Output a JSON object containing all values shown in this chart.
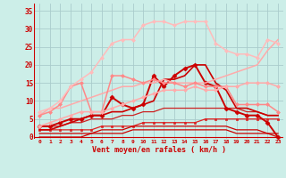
{
  "xlabel": "Vent moyen/en rafales ( km/h )",
  "background_color": "#cceee8",
  "grid_color": "#aacccc",
  "x_values": [
    0,
    1,
    2,
    3,
    4,
    5,
    6,
    7,
    8,
    9,
    10,
    11,
    12,
    13,
    14,
    15,
    16,
    17,
    18,
    19,
    20,
    21,
    22,
    23
  ],
  "ylim": [
    -0.5,
    37
  ],
  "yticks": [
    0,
    5,
    10,
    15,
    20,
    25,
    30,
    35
  ],
  "lines": [
    {
      "y": [
        2,
        2,
        2,
        2,
        2,
        2,
        3,
        3,
        3,
        3,
        4,
        4,
        4,
        4,
        4,
        4,
        5,
        5,
        5,
        5,
        5,
        5,
        5,
        5
      ],
      "color": "#dd2222",
      "lw": 0.9,
      "marker": "s",
      "ms": 1.5
    },
    {
      "y": [
        1,
        1,
        1,
        1,
        1,
        1,
        2,
        2,
        2,
        3,
        3,
        3,
        3,
        3,
        3,
        3,
        3,
        3,
        3,
        2,
        2,
        2,
        1,
        1
      ],
      "color": "#cc0000",
      "lw": 0.9,
      "marker": null
    },
    {
      "y": [
        0,
        0,
        0,
        0,
        0,
        1,
        1,
        1,
        1,
        2,
        2,
        2,
        2,
        2,
        2,
        2,
        2,
        2,
        2,
        1,
        1,
        1,
        1,
        0
      ],
      "color": "#cc0000",
      "lw": 0.9,
      "marker": null
    },
    {
      "y": [
        3,
        3,
        3,
        4,
        4,
        5,
        5,
        5,
        6,
        6,
        7,
        7,
        8,
        8,
        8,
        8,
        8,
        8,
        8,
        8,
        7,
        7,
        6,
        6
      ],
      "color": "#cc2222",
      "lw": 0.9,
      "marker": null
    },
    {
      "y": [
        2,
        2,
        3,
        4,
        5,
        6,
        6,
        7,
        7,
        8,
        9,
        10,
        16,
        16,
        17,
        20,
        20,
        15,
        13,
        8,
        8,
        7,
        6,
        6
      ],
      "color": "#cc0000",
      "lw": 1.2,
      "marker": null
    },
    {
      "y": [
        3,
        3,
        4,
        5,
        5,
        6,
        6,
        11,
        9,
        8,
        9,
        17,
        14,
        17,
        19,
        20,
        15,
        14,
        8,
        7,
        6,
        6,
        4,
        0
      ],
      "color": "#cc0000",
      "lw": 1.4,
      "marker": "D",
      "ms": 2.5
    },
    {
      "y": [
        6,
        8,
        8,
        9,
        10,
        11,
        12,
        13,
        14,
        14,
        15,
        15,
        16,
        15,
        15,
        15,
        15,
        16,
        17,
        18,
        19,
        20,
        24,
        27
      ],
      "color": "#ffaaaa",
      "lw": 1.1,
      "marker": null
    },
    {
      "y": [
        6,
        7,
        9,
        14,
        15,
        7,
        7,
        17,
        17,
        16,
        15,
        16,
        15,
        15,
        14,
        15,
        14,
        14,
        14,
        9,
        9,
        9,
        9,
        7
      ],
      "color": "#ff8888",
      "lw": 1.1,
      "marker": "D",
      "ms": 2
    },
    {
      "y": [
        3,
        4,
        5,
        6,
        7,
        7,
        7,
        8,
        9,
        10,
        11,
        12,
        13,
        13,
        13,
        14,
        13,
        13,
        14,
        14,
        15,
        15,
        15,
        14
      ],
      "color": "#ffaaaa",
      "lw": 1.1,
      "marker": "D",
      "ms": 2
    },
    {
      "y": [
        7,
        8,
        10,
        14,
        16,
        18,
        22,
        26,
        27,
        27,
        31,
        32,
        32,
        31,
        32,
        32,
        32,
        26,
        24,
        23,
        23,
        22,
        27,
        26
      ],
      "color": "#ffbbbb",
      "lw": 1.1,
      "marker": "D",
      "ms": 2
    }
  ]
}
